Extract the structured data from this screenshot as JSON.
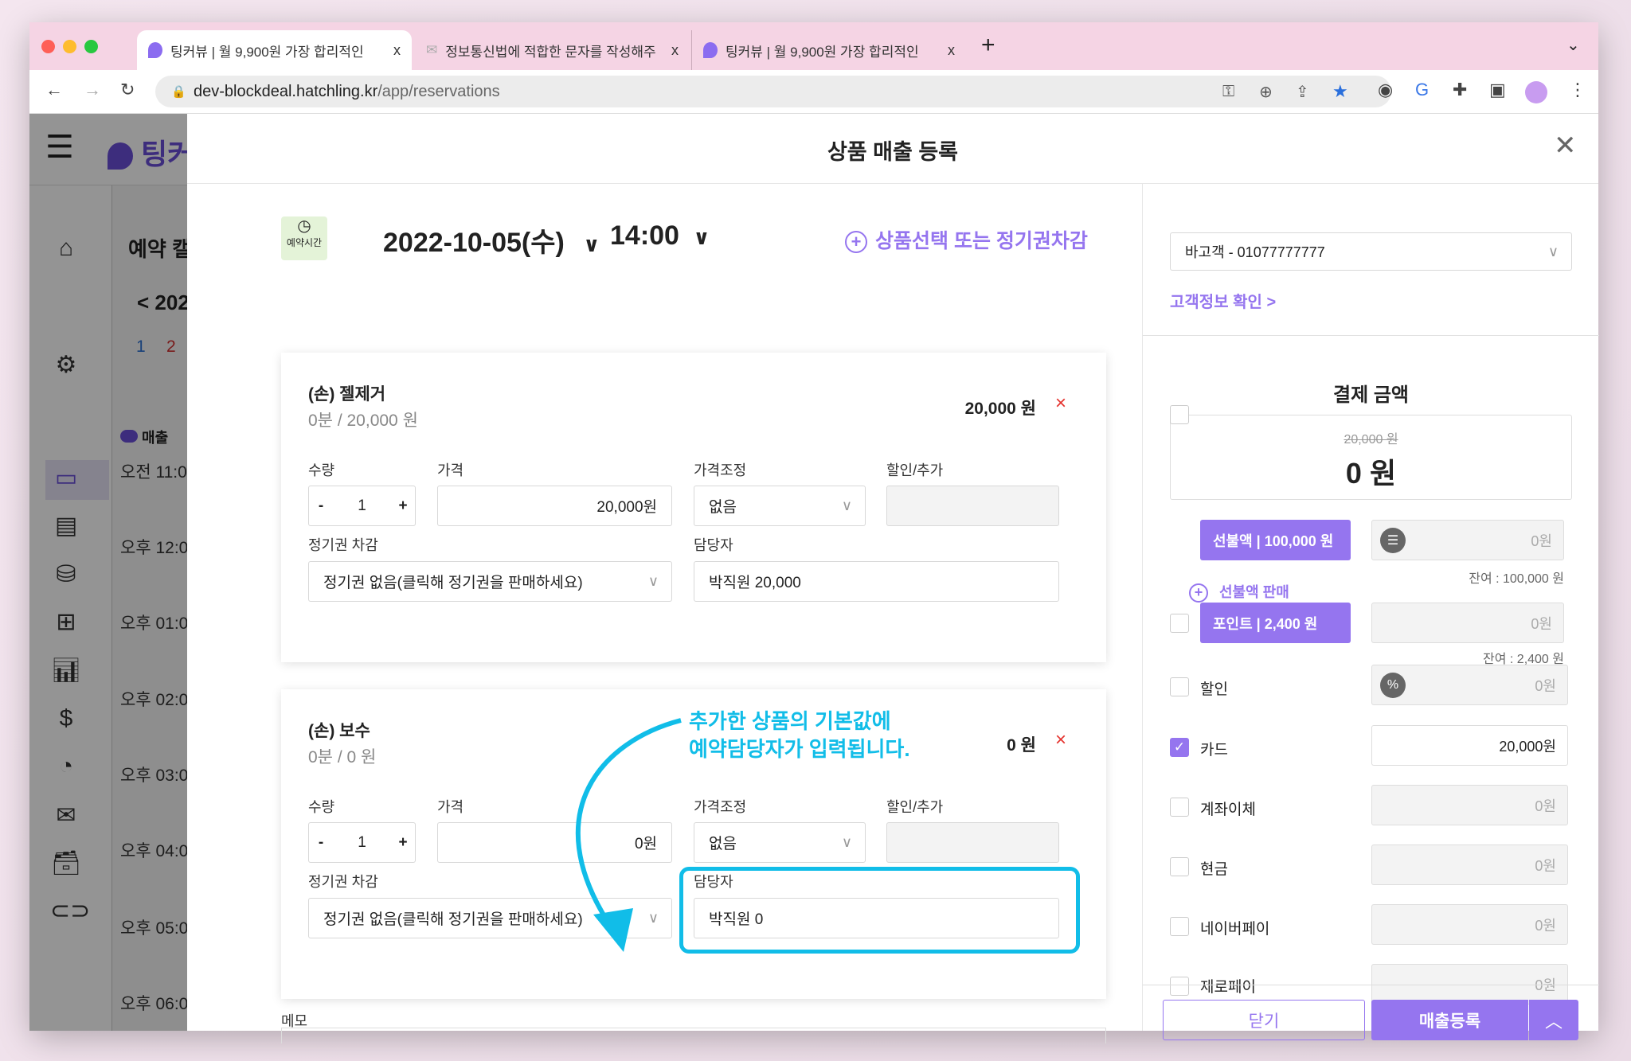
{
  "browser": {
    "tabs": [
      {
        "title": "팅커뷰 | 월 9,900원 가장 합리적인",
        "active": true
      },
      {
        "title": "정보통신법에 적합한 문자를 작성해주",
        "active": false
      },
      {
        "title": "팅커뷰 | 월 9,900원 가장 합리적인",
        "active": false
      }
    ],
    "close_glyph": "x",
    "new_tab": "+",
    "url_host": "dev-blockdeal.hatchling.kr",
    "url_path": "/app/reservations"
  },
  "sidebar": {
    "logo": "팅커",
    "icons": [
      "home-icon",
      "gear-icon",
      "calendar-icon",
      "document-icon",
      "database-icon",
      "file-plus-icon",
      "bar-chart-icon",
      "dollar-icon",
      "pie-chart-icon",
      "mail-icon",
      "archive-icon",
      "link-icon"
    ],
    "calendar_header": "예약 캘",
    "date_nav": "< 202",
    "days": [
      "1",
      "2"
    ],
    "sales_label": "매출",
    "times": [
      "오전 11:0",
      "오후 12:0",
      "오후 01:0",
      "오후 02:0",
      "오후 03:0",
      "오후 04:0",
      "오후 05:0",
      "오후 06:0"
    ]
  },
  "modal": {
    "title": "상품 매출 등록",
    "close": "X",
    "time_badge": "예약시간",
    "date": "2022-10-05(수)",
    "time": "14:00",
    "add_product": "상품선택 또는 정기권차감",
    "labels": {
      "qty": "수량",
      "price": "가격",
      "adjust": "가격조정",
      "discount": "할인/추가",
      "pass": "정기권 차감",
      "staff": "담당자"
    },
    "items": [
      {
        "name": "(손) 젤제거",
        "sub": "0분 / 20,000 원",
        "total": "20,000 원",
        "qty": "1",
        "price": "20,000원",
        "adjust": "없음",
        "discount": "",
        "pass": "정기권 없음(클릭해 정기권을 판매하세요)",
        "staff": "박직원 20,000"
      },
      {
        "name": "(손) 보수",
        "sub": "0분 / 0 원",
        "total": "0 원",
        "qty": "1",
        "price": "0원",
        "adjust": "없음",
        "discount": "",
        "pass": "정기권 없음(클릭해 정기권을 판매하세요)",
        "staff": "박직원 0"
      }
    ],
    "qty_minus": "-",
    "qty_plus": "+",
    "remove": "×",
    "annotation": [
      "추가한 상품의 기본값에",
      "예약담당자가 입력됩니다."
    ],
    "memo_label": "메모"
  },
  "payment": {
    "customer": "바고객 - 01077777777",
    "customer_link": "고객정보 확인 >",
    "title": "결제 금액",
    "original": "20,000 원",
    "amount": "0 원",
    "prepaid": {
      "label": "선불액 | 100,000 원",
      "value": "0원",
      "remain": "잔여 : 100,000 원",
      "sell": "선불액 판매",
      "checked": false
    },
    "point": {
      "label": "포인트 | 2,400 원",
      "value": "0원",
      "remain": "잔여 : 2,400 원",
      "checked": false
    },
    "methods": [
      {
        "label": "할인",
        "value": "0원",
        "checked": false
      },
      {
        "label": "카드",
        "value": "20,000원",
        "checked": true
      },
      {
        "label": "계좌이체",
        "value": "0원",
        "checked": false
      },
      {
        "label": "현금",
        "value": "0원",
        "checked": false
      },
      {
        "label": "네이버페이",
        "value": "0원",
        "checked": false
      },
      {
        "label": "제로페이",
        "value": "0원",
        "checked": false
      }
    ],
    "close_btn": "닫기",
    "submit_btn": "매출등록"
  },
  "colors": {
    "accent": "#9575ef",
    "annotation": "#11bde8",
    "danger": "#e5322d",
    "tab_bar": "#f5d4e4"
  }
}
